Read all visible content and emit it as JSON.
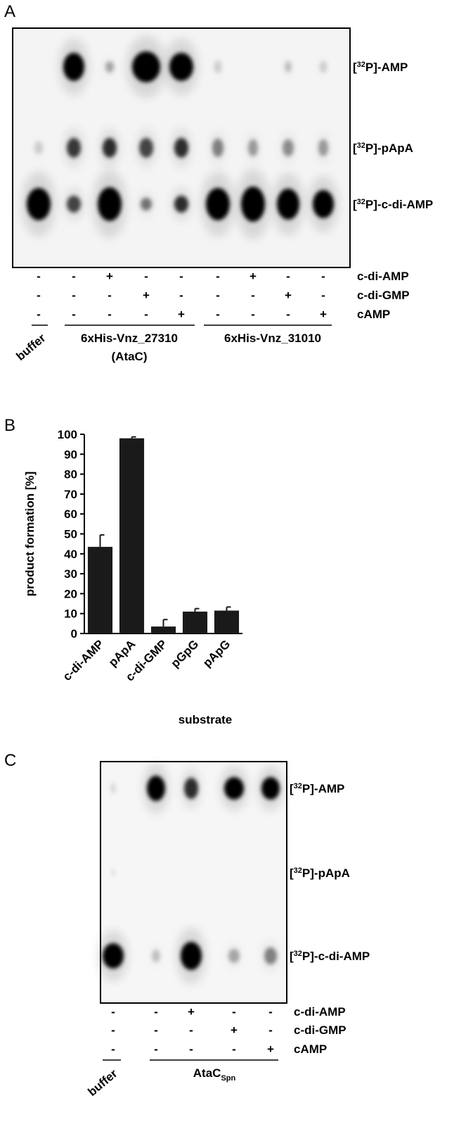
{
  "panel_a": {
    "label": "A",
    "bands": [
      {
        "pre": "[",
        "sup": "32",
        "post": "P]-AMP"
      },
      {
        "pre": "[",
        "sup": "32",
        "post": "P]-pApA"
      },
      {
        "pre": "[",
        "sup": "32",
        "post": "P]-c-di-AMP"
      }
    ],
    "conditions": [
      {
        "name": "c-di-AMP",
        "signs": [
          "-",
          "-",
          "+",
          "-",
          "-",
          "-",
          "+",
          "-",
          "-"
        ]
      },
      {
        "name": "c-di-GMP",
        "signs": [
          "-",
          "-",
          "-",
          "+",
          "-",
          "-",
          "-",
          "+",
          "-"
        ]
      },
      {
        "name": "cAMP",
        "signs": [
          "-",
          "-",
          "-",
          "-",
          "+",
          "-",
          "-",
          "-",
          "+"
        ]
      }
    ],
    "groups": [
      {
        "lines": [
          "buffer"
        ]
      },
      {
        "lines": [
          "6xHis-Vnz_27310",
          "(AtaC)"
        ]
      },
      {
        "lines": [
          "6xHis-Vnz_31010"
        ]
      }
    ]
  },
  "chart_data": {
    "type": "bar",
    "label": "B",
    "categories": [
      "c-di-AMP",
      "pApA",
      "c-di-GMP",
      "pGpG",
      "pApG"
    ],
    "values": [
      43.5,
      98,
      3.5,
      11,
      11.5
    ],
    "errors": [
      6,
      0.7,
      3.5,
      1.5,
      1.8
    ],
    "color": "#1a1a1a",
    "ylim": [
      0,
      100
    ],
    "yticks": [
      0,
      10,
      20,
      30,
      40,
      50,
      60,
      70,
      80,
      90,
      100
    ],
    "ylabel": "product formation [%]",
    "xlabel": "substrate"
  },
  "panel_c": {
    "label": "C",
    "bands": [
      {
        "pre": "[",
        "sup": "32",
        "post": "P]-AMP"
      },
      {
        "pre": "[",
        "sup": "32",
        "post": "P]-pApA"
      },
      {
        "pre": "[",
        "sup": "32",
        "post": "P]-c-di-AMP"
      }
    ],
    "conditions": [
      {
        "name": "c-di-AMP",
        "signs": [
          "-",
          "-",
          "+",
          "-",
          "-"
        ]
      },
      {
        "name": "c-di-GMP",
        "signs": [
          "-",
          "-",
          "-",
          "+",
          "-"
        ]
      },
      {
        "name": "cAMP",
        "signs": [
          "-",
          "-",
          "-",
          "-",
          "+"
        ]
      }
    ],
    "groups": [
      {
        "text": "buffer"
      },
      {
        "text": "AtaC",
        "sub": "Spn"
      }
    ]
  }
}
